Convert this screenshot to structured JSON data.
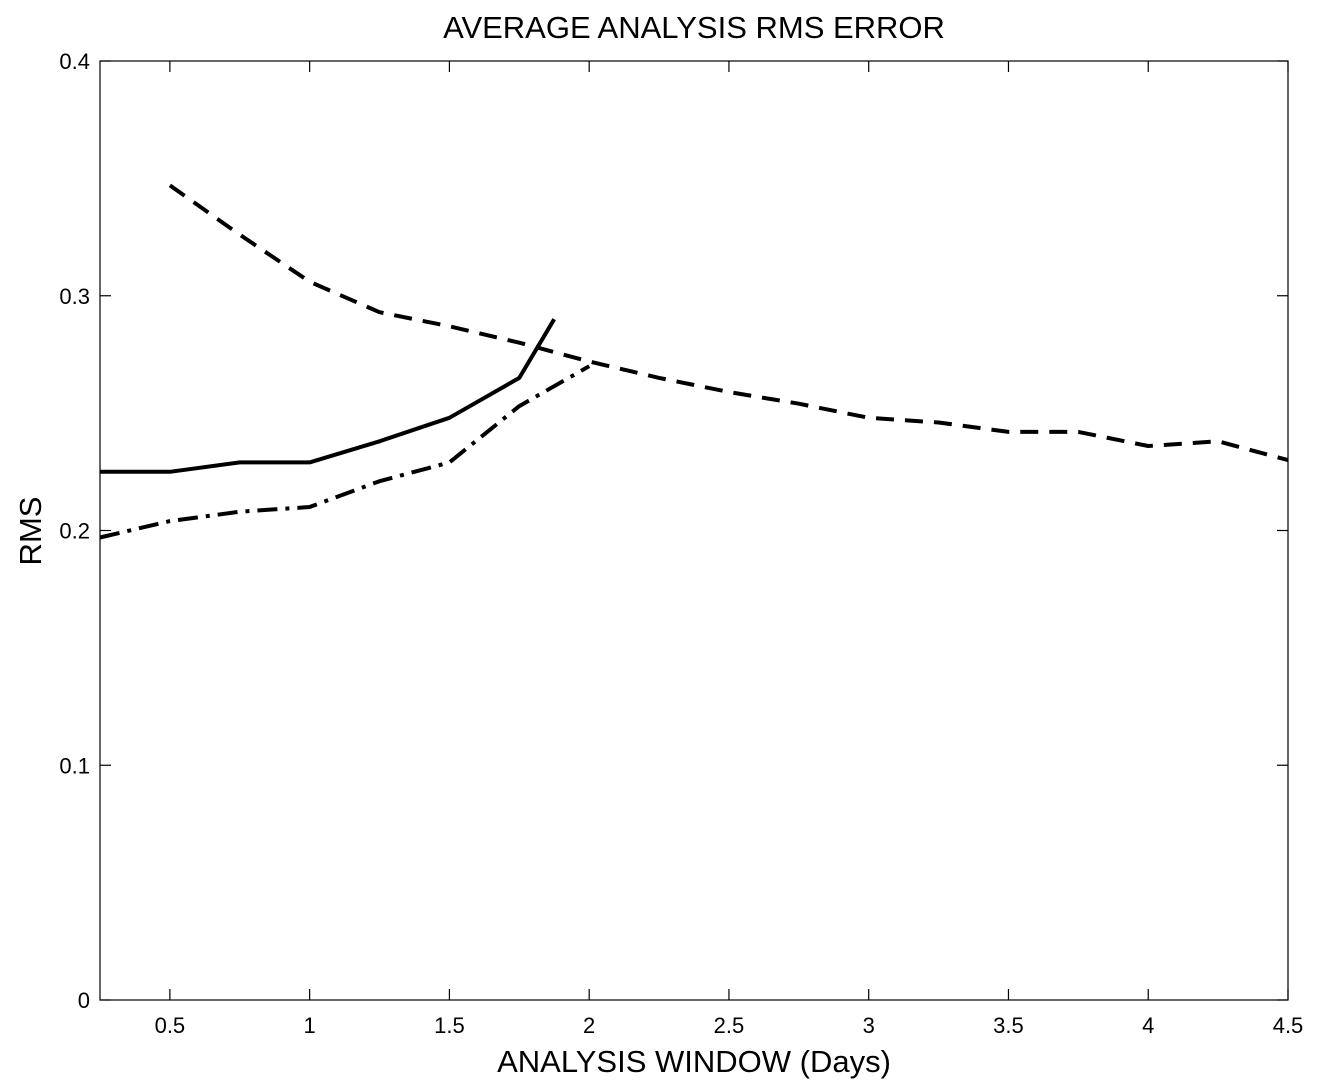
{
  "chart_data": {
    "type": "line",
    "title": "AVERAGE ANALYSIS RMS ERROR",
    "xlabel": "ANALYSIS WINDOW (Days)",
    "ylabel": "RMS",
    "xlim": [
      0.25,
      4.5
    ],
    "ylim": [
      0,
      0.4
    ],
    "xticks": [
      0.5,
      1,
      1.5,
      2,
      2.5,
      3,
      3.5,
      4,
      4.5
    ],
    "xtick_labels": [
      "0.5",
      "1",
      "1.5",
      "2",
      "2.5",
      "3",
      "3.5",
      "4",
      "4.5"
    ],
    "yticks": [
      0,
      0.1,
      0.2,
      0.3,
      0.4
    ],
    "ytick_labels": [
      "0",
      "0.1",
      "0.2",
      "0.3",
      "0.4"
    ],
    "grid": false,
    "colors": {
      "line": "#000000",
      "axes": "#000000",
      "background": "#ffffff"
    },
    "series": [
      {
        "style": "solid",
        "x": [
          0.25,
          0.5,
          0.75,
          1.0,
          1.25,
          1.5,
          1.75,
          1.875
        ],
        "y": [
          0.225,
          0.225,
          0.229,
          0.229,
          0.238,
          0.248,
          0.265,
          0.29
        ]
      },
      {
        "style": "dashdot",
        "x": [
          0.25,
          0.5,
          0.75,
          1.0,
          1.25,
          1.5,
          1.75,
          2.0
        ],
        "y": [
          0.197,
          0.204,
          0.208,
          0.21,
          0.221,
          0.229,
          0.253,
          0.27
        ]
      },
      {
        "style": "dashed",
        "x": [
          0.5,
          0.75,
          1.0,
          1.25,
          1.5,
          1.75,
          2.0,
          2.25,
          2.5,
          2.75,
          3.0,
          3.25,
          3.5,
          3.75,
          4.0,
          4.25,
          4.5
        ],
        "y": [
          0.347,
          0.326,
          0.306,
          0.293,
          0.287,
          0.28,
          0.272,
          0.265,
          0.259,
          0.254,
          0.248,
          0.246,
          0.242,
          0.242,
          0.236,
          0.238,
          0.23
        ]
      }
    ]
  }
}
